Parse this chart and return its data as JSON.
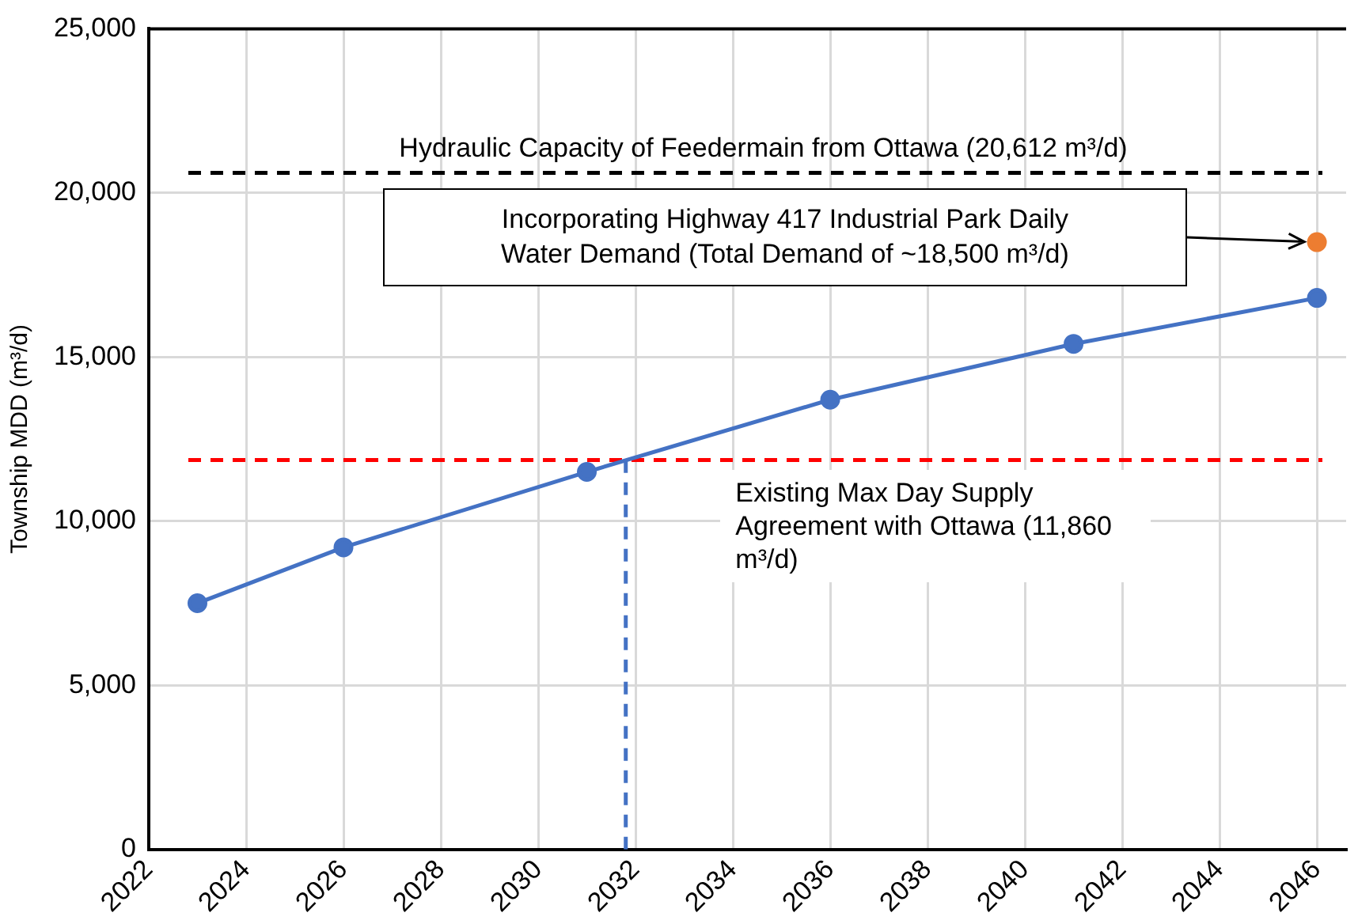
{
  "chart_data": {
    "type": "line",
    "ylabel": "Township MDD (m³/d)",
    "xlim": [
      2022,
      2046.6
    ],
    "xticks": [
      2022,
      2024,
      2026,
      2028,
      2030,
      2032,
      2034,
      2036,
      2038,
      2040,
      2042,
      2044,
      2046
    ],
    "ylim": [
      0,
      25000
    ],
    "yticks": [
      0,
      {
        "value": 5000,
        "label": "5,000"
      },
      {
        "value": 10000,
        "label": "10,000"
      },
      {
        "value": 15000,
        "label": "15,000"
      },
      {
        "value": 20000,
        "label": "20,000"
      },
      {
        "value": 25000,
        "label": "25,000"
      }
    ],
    "grid": true,
    "legend": false,
    "marker": "circle",
    "line_style": "solid",
    "series": [
      {
        "color": "#4472c4",
        "x": [
          2023,
          2026,
          2031,
          2036,
          2041,
          2046
        ],
        "values": [
          7500,
          9200,
          11500,
          13700,
          15400,
          16800
        ]
      },
      {
        "type": "scatter",
        "color": "#ed7d31",
        "x": [
          2046
        ],
        "values": [
          18500
        ]
      },
      {
        "type": "line",
        "color": "#4472c4",
        "marker": "none",
        "line_style": "dashed",
        "x": [
          2031.8,
          2031.8
        ],
        "values": [
          0,
          11860
        ]
      }
    ],
    "ref_lines": [
      {
        "axis": "y",
        "value": 20612,
        "label": "Hydraulic Capacity of Feedermain from Ottawa (20,612 m³/d)",
        "color": "#000000",
        "line_style": "dashed"
      },
      {
        "axis": "y",
        "value": 11860,
        "label": "Existing Max Day Supply Agreement with Ottawa (11,860 m³/d)",
        "color": "#ff0000",
        "line_style": "dashed"
      }
    ],
    "annotations": [
      "Incorporating Highway 417 Industrial Park Daily Water Demand (Total Demand of ~18,500 m³/d)"
    ]
  }
}
